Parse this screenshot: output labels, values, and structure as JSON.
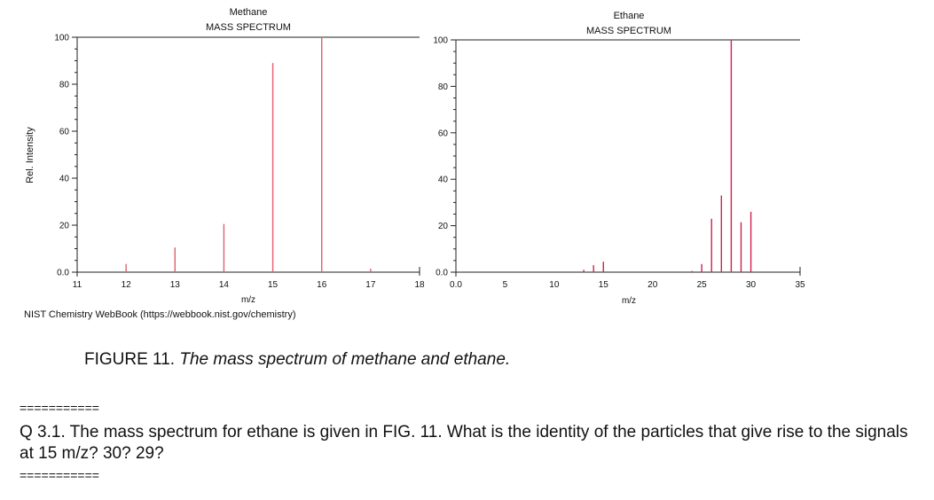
{
  "chart_data": [
    {
      "type": "bar",
      "title": "Methane",
      "subtitle": "MASS SPECTRUM",
      "xlabel": "m/z",
      "ylabel": "Rel. Intensity",
      "xlim": [
        11,
        18
      ],
      "ylim": [
        0,
        100
      ],
      "xticks": [
        "11",
        "12",
        "13",
        "14",
        "15",
        "16",
        "17",
        "18"
      ],
      "yticks": [
        "0.0",
        "20",
        "40",
        "60",
        "80",
        "100"
      ],
      "x": [
        12,
        13,
        14,
        15,
        16,
        17
      ],
      "values": [
        3.5,
        10.5,
        20.5,
        89,
        100,
        1.5
      ],
      "grid": false,
      "colors": {
        "bar": "#e06070",
        "axis": "#222222"
      }
    },
    {
      "type": "bar",
      "title": "Ethane",
      "subtitle": "MASS SPECTRUM",
      "xlabel": "m/z",
      "ylabel": "",
      "xlim": [
        0,
        35
      ],
      "ylim": [
        0,
        100
      ],
      "xticks": [
        "0.0",
        "5",
        "10",
        "15",
        "20",
        "25",
        "30",
        "35"
      ],
      "yticks": [
        "0.0",
        "20",
        "40",
        "60",
        "80",
        "100"
      ],
      "x": [
        13,
        14,
        15,
        24,
        25,
        26,
        27,
        28,
        29,
        30
      ],
      "values": [
        1,
        3,
        4.5,
        0.5,
        3.5,
        23,
        33,
        100,
        21.5,
        26
      ],
      "grid": false,
      "colors": {
        "bar": "#d02050",
        "axis": "#222222"
      }
    }
  ],
  "source_text": "NIST Chemistry WebBook (https://webbook.nist.gov/chemistry)",
  "caption": {
    "prefix": "FIGURE 11.",
    "italic": "The mass spectrum of methane and ethane."
  },
  "separator": "===========",
  "question": "Q 3.1.  The mass spectrum for ethane is given in FIG. 11.  What is the identity of the particles that give rise to the signals at 15 m/z?  30?   29?"
}
